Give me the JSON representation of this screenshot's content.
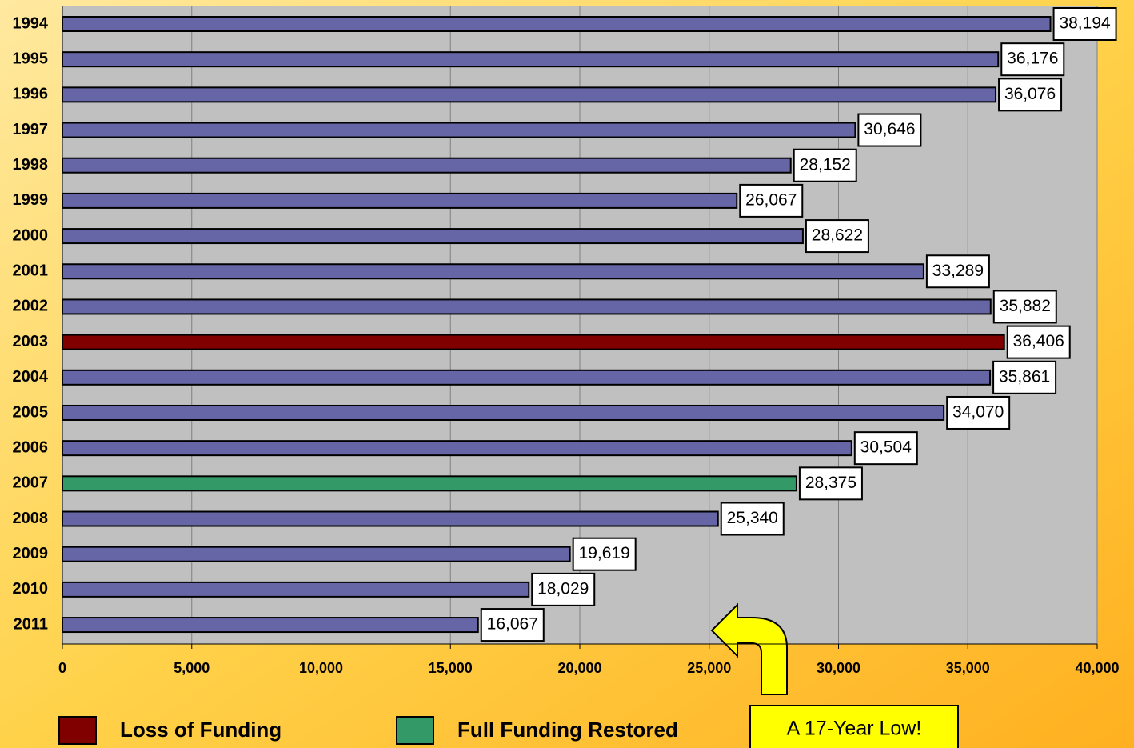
{
  "chart_data": {
    "type": "hbar",
    "categories": [
      "1994",
      "1995",
      "1996",
      "1997",
      "1998",
      "1999",
      "2000",
      "2001",
      "2002",
      "2003",
      "2004",
      "2005",
      "2006",
      "2007",
      "2008",
      "2009",
      "2010",
      "2011"
    ],
    "values": [
      38194,
      36176,
      36076,
      30646,
      28152,
      26067,
      28622,
      33289,
      35882,
      36406,
      35861,
      34070,
      30504,
      28375,
      25340,
      19619,
      18029,
      16067
    ],
    "value_labels": [
      "38,194",
      "36,176",
      "36,076",
      "30,646",
      "28,152",
      "26,067",
      "28,622",
      "33,289",
      "35,882",
      "36,406",
      "35,861",
      "34,070",
      "30,504",
      "28,375",
      "25,340",
      "19,619",
      "18,029",
      "16,067"
    ],
    "colors": [
      "#6666a6",
      "#6666a6",
      "#6666a6",
      "#6666a6",
      "#6666a6",
      "#6666a6",
      "#6666a6",
      "#6666a6",
      "#6666a6",
      "#800000",
      "#6666a6",
      "#6666a6",
      "#6666a6",
      "#339966",
      "#6666a6",
      "#6666a6",
      "#6666a6",
      "#6666a6"
    ],
    "xlim": [
      0,
      40000
    ],
    "xticks": [
      0,
      {
        "value": 5000,
        "label": "5,000"
      },
      {
        "value": 10000,
        "label": "10,000"
      },
      {
        "value": 15000,
        "label": "15,000"
      },
      {
        "value": 20000,
        "label": "20,000"
      },
      {
        "value": 25000,
        "label": "25,000"
      },
      {
        "value": 30000,
        "label": "30,000"
      },
      {
        "value": 35000,
        "label": "35,000"
      },
      {
        "value": 40000,
        "label": "40,000"
      }
    ],
    "grid": true,
    "legend": [
      {
        "name": "Loss of Funding",
        "color": "#800000"
      },
      {
        "name": "Full Funding Restored",
        "color": "#339966"
      }
    ],
    "annotation": "A 17-Year Low!"
  }
}
